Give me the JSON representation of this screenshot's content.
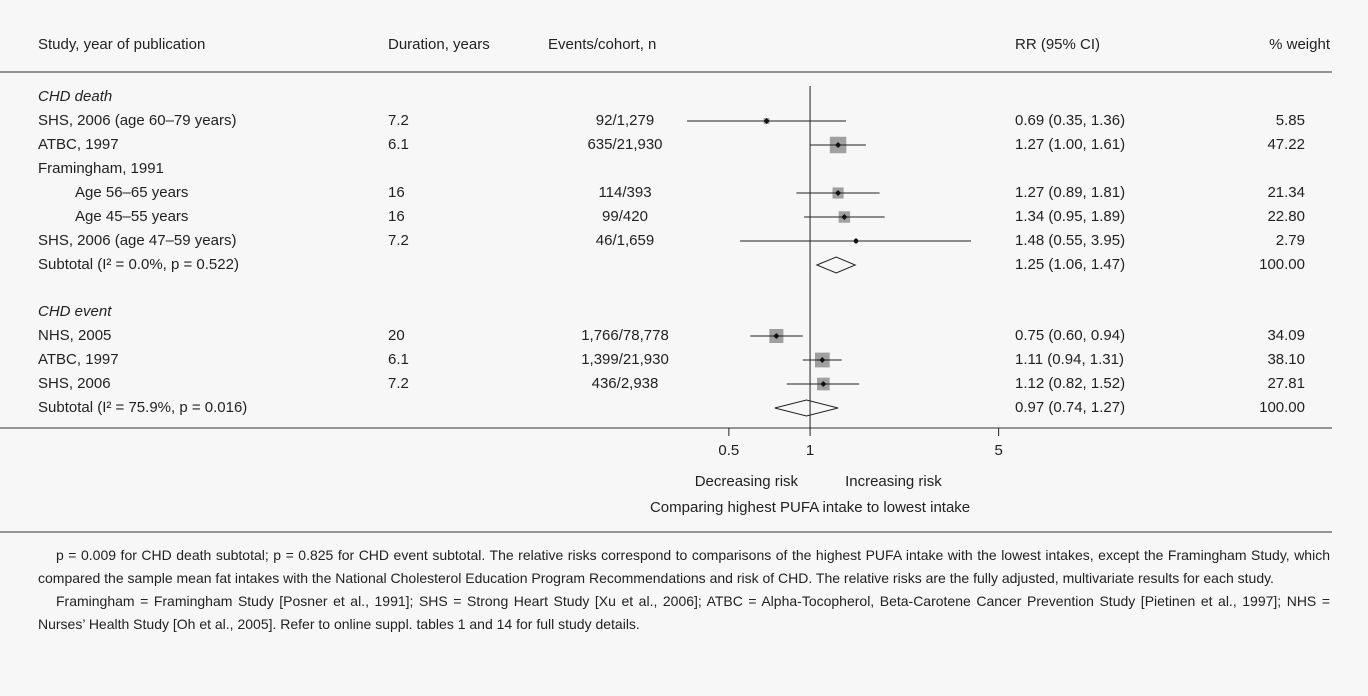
{
  "chart_data": {
    "type": "forest",
    "columns": [
      "Study, year of publication",
      "Duration, years",
      "Events/cohort, n",
      "RR (95% CI)",
      "% weight"
    ],
    "log_scale": true,
    "xlim": [
      0.3,
      6
    ],
    "xticks": [
      0.5,
      1,
      5
    ],
    "reference_line": 1,
    "left_label": "Decreasing risk",
    "right_label": "Increasing risk",
    "xlabel": "Comparing highest PUFA intake to lowest intake",
    "box_color": "#a0a0a0",
    "sections": [
      {
        "label": "CHD death",
        "rows": [
          {
            "study": "SHS, 2006 (age 60–79 years)",
            "duration": 7.2,
            "events": "92/1,279",
            "rr": 0.69,
            "ci": [
              0.35,
              1.36
            ],
            "rr_label": "0.69 (0.35, 1.36)",
            "weight": 5.85
          },
          {
            "study": "ATBC, 1997",
            "duration": 6.1,
            "events": "635/21,930",
            "rr": 1.27,
            "ci": [
              1.0,
              1.61
            ],
            "rr_label": "1.27 (1.00, 1.61)",
            "weight": 47.22
          },
          {
            "study": "Framingham, 1991"
          },
          {
            "study": "Age 56–65 years",
            "indent": true,
            "duration": 16,
            "events": "114/393",
            "rr": 1.27,
            "ci": [
              0.89,
              1.81
            ],
            "rr_label": "1.27 (0.89, 1.81)",
            "weight": 21.34
          },
          {
            "study": "Age 45–55 years",
            "indent": true,
            "duration": 16,
            "events": "99/420",
            "rr": 1.34,
            "ci": [
              0.95,
              1.89
            ],
            "rr_label": "1.34 (0.95, 1.89)",
            "weight": {
              "value": 22.8,
              "label": "22.80"
            }
          },
          {
            "study": "SHS, 2006 (age 47–59 years)",
            "duration": 7.2,
            "events": "46/1,659",
            "rr": 1.48,
            "ci": [
              0.55,
              3.95
            ],
            "rr_label": "1.48 (0.55, 3.95)",
            "weight": 2.79
          },
          {
            "study": "Subtotal (I² = 0.0%, p = 0.522)",
            "summary": true,
            "rr": 1.25,
            "ci": [
              1.06,
              1.47
            ],
            "rr_label": "1.25 (1.06, 1.47)",
            "weight": {
              "value": 100,
              "label": "100.00"
            }
          }
        ]
      },
      {
        "label": "CHD event",
        "rows": [
          {
            "study": "NHS, 2005",
            "duration": 20,
            "events": "1,766/78,778",
            "rr": 0.75,
            "ci": [
              0.6,
              0.94
            ],
            "rr_label": "0.75 (0.60, 0.94)",
            "weight": 34.09
          },
          {
            "study": "ATBC, 1997",
            "duration": 6.1,
            "events": "1,399/21,930",
            "rr": 1.11,
            "ci": [
              0.94,
              1.31
            ],
            "rr_label": "1.11 (0.94, 1.31)",
            "weight": {
              "value": 38.1,
              "label": "38.10"
            }
          },
          {
            "study": "SHS, 2006",
            "duration": 7.2,
            "events": "436/2,938",
            "rr": 1.12,
            "ci": [
              0.82,
              1.52
            ],
            "rr_label": "1.12 (0.82, 1.52)",
            "weight": 27.81
          },
          {
            "study": "Subtotal (I² = 75.9%, p = 0.016)",
            "summary": true,
            "rr": 0.97,
            "ci": [
              0.74,
              1.27
            ],
            "rr_label": "0.97 (0.74, 1.27)",
            "weight": {
              "value": 100,
              "label": "100.00"
            }
          }
        ]
      }
    ],
    "footnotes": [
      "p = 0.009 for CHD death subtotal; p = 0.825 for CHD event subtotal. The relative risks correspond to comparisons of the highest PUFA intake with the lowest intakes, except the Framingham Study, which compared the sample mean fat intakes with the National Cholesterol Education Program Recommendations and risk of CHD. The relative risks are the fully adjusted, multivariate results for each study.",
      "Framingham = Framingham Study [Posner et al., 1991]; SHS = Strong Heart Study [Xu et al., 2006]; ATBC = Alpha-Tocopherol, Beta-Carotene Cancer Prevention Study [Pietinen et al., 1997]; NHS = Nurses’ Health Study [Oh et al., 2005]. Refer to online suppl. tables 1 and 14 for full study details."
    ]
  }
}
